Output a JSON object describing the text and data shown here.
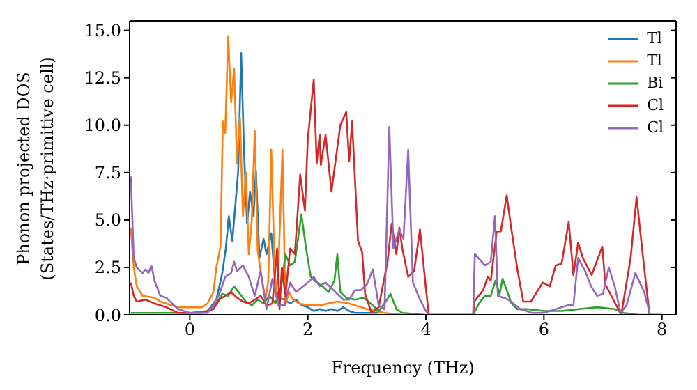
{
  "chart_data": {
    "type": "line",
    "xlabel": "Frequency (THz)",
    "ylabel": "Phonon projected DOS\n(States/THz·primitive cell)",
    "xlim": [
      -1.02,
      8.24
    ],
    "xticks": [
      0,
      2,
      4,
      6,
      8
    ],
    "ylim": [
      0,
      15.5
    ],
    "yticks": [
      {
        "value": 0,
        "label": "0.0"
      },
      {
        "value": 2.5,
        "label": "2.5"
      },
      {
        "value": 5,
        "label": "5.0"
      },
      {
        "value": 7.5,
        "label": "7.5"
      },
      {
        "value": 10,
        "label": "10.0"
      },
      {
        "value": 12.5,
        "label": "12.5"
      },
      {
        "value": 15,
        "label": "15.0"
      }
    ],
    "legend": "top right",
    "grid": false,
    "marker": "none",
    "line_style": "solid",
    "series": [
      {
        "name": "Tl",
        "color": "#1f77b4",
        "x": [
          0.3,
          0.45,
          0.55,
          0.61,
          0.66,
          0.72,
          0.78,
          0.82,
          0.87,
          0.92,
          0.97,
          1.02,
          1.08,
          1.12,
          1.18,
          1.25,
          1.3,
          1.38,
          1.45,
          1.5,
          1.6,
          1.7,
          1.8,
          1.9,
          2.0,
          2.1,
          2.2,
          2.3,
          2.4,
          2.5,
          2.6,
          2.7,
          2.8,
          3.0,
          3.2
        ],
        "values": [
          0.2,
          0.8,
          2.2,
          3.5,
          5.2,
          3.9,
          6.1,
          7.6,
          13.8,
          8.5,
          4.8,
          6.5,
          5.2,
          7.6,
          3.0,
          4.0,
          3.2,
          4.3,
          1.5,
          0.9,
          0.8,
          0.6,
          0.8,
          0.5,
          0.4,
          0.2,
          0.3,
          0.2,
          0.3,
          0.2,
          0.4,
          0.2,
          0.1,
          0.1,
          0.1
        ]
      },
      {
        "name": "Tl",
        "color": "#ff7f0e",
        "x": [
          -1,
          -0.95,
          -0.9,
          -0.8,
          -0.6,
          -0.5,
          -0.3,
          -0.2,
          0,
          0.2,
          0.3,
          0.4,
          0.45,
          0.52,
          0.56,
          0.6,
          0.65,
          0.7,
          0.75,
          0.8,
          0.85,
          0.9,
          0.95,
          1.0,
          1.05,
          1.1,
          1.15,
          1.2,
          1.28,
          1.33,
          1.38,
          1.45,
          1.5,
          1.57,
          1.62,
          1.68,
          1.75,
          1.85,
          2.0,
          2.2,
          2.5,
          2.7,
          3.0,
          3.3,
          3.6
        ],
        "values": [
          4.6,
          2.5,
          1.5,
          1.0,
          0.9,
          0.7,
          0.5,
          0.4,
          0.4,
          0.4,
          0.6,
          1.2,
          2.5,
          3.6,
          10.2,
          9.6,
          14.7,
          11.2,
          13.0,
          8.0,
          10.4,
          5.2,
          7.5,
          3.2,
          5.0,
          9.7,
          3.4,
          2.3,
          0.8,
          1.8,
          8.7,
          1.0,
          2.3,
          8.7,
          0.5,
          1.2,
          0.8,
          0.6,
          0.5,
          0.5,
          0.7,
          0.6,
          0.3,
          0.1,
          0
        ]
      },
      {
        "name": "Bi",
        "color": "#2ca02c",
        "x": [
          -1,
          -0.5,
          0,
          0.3,
          0.45,
          0.55,
          0.65,
          0.75,
          0.85,
          0.95,
          1.05,
          1.15,
          1.25,
          1.35,
          1.45,
          1.55,
          1.62,
          1.7,
          1.78,
          1.89,
          1.97,
          2.05,
          2.15,
          2.25,
          2.35,
          2.45,
          2.5,
          2.55,
          2.65,
          2.8,
          2.95,
          3.1,
          3.2,
          3.3,
          3.4,
          3.5,
          3.6,
          4.0,
          4.8,
          4.9,
          5.0,
          5.1,
          5.18,
          5.25,
          5.3,
          5.37,
          5.45,
          5.55,
          5.7,
          6.0,
          6.3,
          6.6,
          6.9,
          7.2,
          7.35,
          7.6,
          8.0
        ],
        "values": [
          0.1,
          0.1,
          0.1,
          0.2,
          0.6,
          1.1,
          1.0,
          1.5,
          1.1,
          0.7,
          0.5,
          0.8,
          0.6,
          1.0,
          0.6,
          1.5,
          3.2,
          2.6,
          2.8,
          5.3,
          3.5,
          2.0,
          1.7,
          1.5,
          1.2,
          1.8,
          3.2,
          1.2,
          0.9,
          0.8,
          0.9,
          0.5,
          0.2,
          0.6,
          1.1,
          0.3,
          0.1,
          0,
          0,
          0.6,
          1.0,
          1.0,
          1.8,
          1.1,
          1.9,
          1.3,
          0.6,
          0.3,
          0.3,
          0.2,
          0.2,
          0.3,
          0.4,
          0.3,
          0.1,
          0,
          0
        ]
      },
      {
        "name": "Cl",
        "color": "#d62728",
        "x": [
          -1,
          -0.95,
          -0.9,
          -0.75,
          -0.6,
          -0.4,
          -0.2,
          0,
          0.2,
          0.4,
          0.5,
          0.6,
          0.7,
          0.8,
          0.9,
          1.0,
          1.1,
          1.2,
          1.3,
          1.4,
          1.48,
          1.52,
          1.56,
          1.62,
          1.7,
          1.78,
          1.83,
          1.87,
          1.95,
          2.0,
          2.1,
          2.15,
          2.2,
          2.22,
          2.3,
          2.4,
          2.55,
          2.65,
          2.7,
          2.75,
          2.85,
          2.92,
          2.97,
          3.08,
          3.2,
          3.35,
          3.42,
          3.5,
          3.55,
          3.6,
          3.7,
          3.8,
          3.9,
          4.0,
          4.05,
          4.8,
          4.82,
          4.97,
          5.05,
          5.1,
          5.2,
          5.27,
          5.37,
          5.44,
          5.55,
          5.65,
          5.78,
          5.98,
          6.1,
          6.2,
          6.3,
          6.42,
          6.5,
          6.58,
          6.66,
          6.81,
          6.99,
          7.04,
          7.16,
          7.31,
          7.47,
          7.57,
          7.67,
          7.79,
          8.0
        ],
        "values": [
          1.7,
          1.0,
          0.7,
          0.8,
          0.6,
          0.4,
          0.1,
          0.1,
          0.1,
          0.3,
          0.8,
          1.0,
          1.2,
          0.9,
          0.7,
          0.6,
          0.8,
          1.0,
          0.5,
          0.6,
          3.5,
          0.3,
          2.5,
          1.0,
          3.5,
          3.2,
          5.5,
          7.4,
          5.5,
          9.3,
          12.4,
          8.0,
          9.5,
          7.9,
          9.5,
          6.5,
          10.0,
          10.7,
          8.1,
          10.2,
          3.9,
          3.3,
          1.1,
          0.1,
          0.4,
          2.8,
          4.8,
          3.2,
          4.6,
          3.5,
          2.0,
          2.3,
          4.5,
          1.4,
          0,
          0,
          0.7,
          1.3,
          2.0,
          1.8,
          4.4,
          4.4,
          6.3,
          4.7,
          2.4,
          0.7,
          0.7,
          1.7,
          1.5,
          2.6,
          2.7,
          4.9,
          2.1,
          3.8,
          3.0,
          2.1,
          3.6,
          1.6,
          0.9,
          0,
          3.0,
          6.2,
          3.3,
          0,
          0
        ]
      },
      {
        "name": "Cl",
        "color": "#9467bd",
        "x": [
          -1,
          -0.95,
          -0.9,
          -0.8,
          -0.75,
          -0.7,
          -0.65,
          -0.6,
          -0.5,
          -0.4,
          -0.3,
          -0.2,
          0,
          0.3,
          0.4,
          0.5,
          0.6,
          0.7,
          0.75,
          0.8,
          0.9,
          1.0,
          1.1,
          1.2,
          1.3,
          1.4,
          1.5,
          1.6,
          1.7,
          1.8,
          2.0,
          2.1,
          2.2,
          2.3,
          2.5,
          2.6,
          2.7,
          2.8,
          2.9,
          3.0,
          3.1,
          3.2,
          3.3,
          3.38,
          3.45,
          3.55,
          3.62,
          3.7,
          3.78,
          3.9,
          4.0,
          4.05,
          4.8,
          4.83,
          5.0,
          5.1,
          5.17,
          5.22,
          5.4,
          5.6,
          5.8,
          6.0,
          6.2,
          6.4,
          6.5,
          6.58,
          6.7,
          6.8,
          6.9,
          7.0,
          7.1,
          7.2,
          7.3,
          7.4,
          7.55,
          7.7,
          7.8
        ],
        "values": [
          7.3,
          3.0,
          2.5,
          2.2,
          2.4,
          2.2,
          2.6,
          1.8,
          1.0,
          0.9,
          0.6,
          0.3,
          0.1,
          0.1,
          0.5,
          1.1,
          2.0,
          2.2,
          2.8,
          2.3,
          2.6,
          2.0,
          1.0,
          2.3,
          0.3,
          1.9,
          0.5,
          0.5,
          1.7,
          1.2,
          1.7,
          2.0,
          1.5,
          1.7,
          1.1,
          0.8,
          0.8,
          1.3,
          1.3,
          1.6,
          2.4,
          0.5,
          0.3,
          9.9,
          3.5,
          4.5,
          4.0,
          8.7,
          1.7,
          0.8,
          0.2,
          0,
          0,
          3.2,
          2.6,
          2.8,
          5.2,
          1.0,
          0.8,
          0.3,
          0.1,
          0.1,
          0.3,
          0.5,
          0.5,
          3.0,
          2.3,
          1.5,
          1.0,
          1.1,
          2.5,
          1.5,
          0.1,
          0.5,
          2.2,
          1.2,
          0
        ]
      }
    ]
  }
}
